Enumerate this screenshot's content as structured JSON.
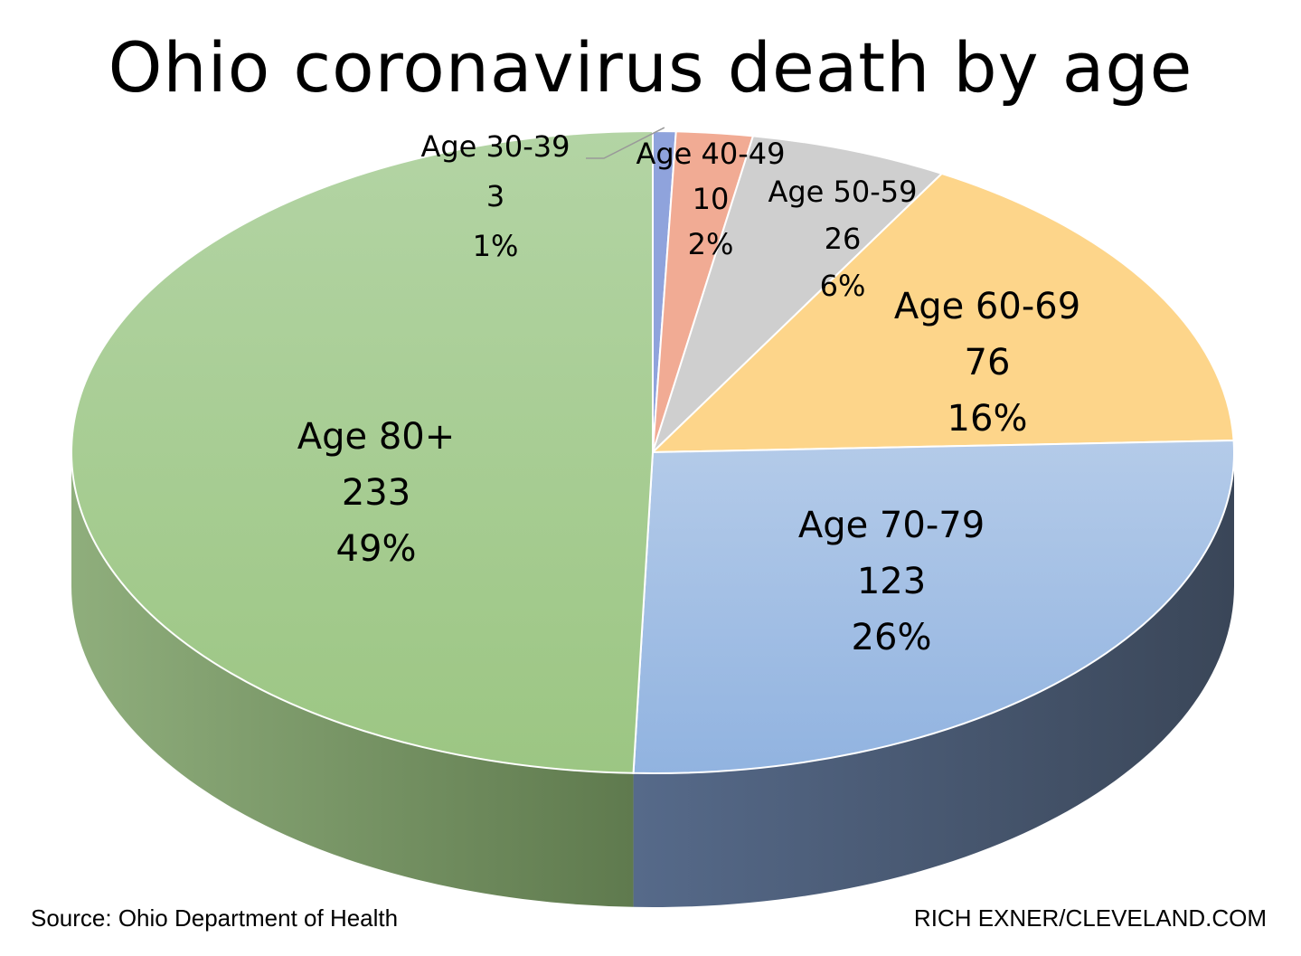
{
  "chart_data": {
    "type": "pie",
    "title": "Ohio coronavirus death by age",
    "slices": [
      {
        "label": "Age 30-39",
        "value": 3,
        "percent": "1%",
        "color": "#8fa3dc",
        "side_color": "#5b6fa8"
      },
      {
        "label": "Age 40-49",
        "value": 10,
        "percent": "2%",
        "color": "#f1ab94",
        "side_color": "#b5705a"
      },
      {
        "label": "Age 50-59",
        "value": 26,
        "percent": "6%",
        "color": "#cfcfcf",
        "side_color": "#8a8a8a"
      },
      {
        "label": "Age 60-69",
        "value": 76,
        "percent": "16%",
        "color": "#fdd58a",
        "side_color": "#b8903f"
      },
      {
        "label": "Age 70-79",
        "value": 123,
        "percent": "26%",
        "color": "#a9c4e6",
        "side_color": "#4a5a75"
      },
      {
        "label": "Age 80+",
        "value": 233,
        "percent": "49%",
        "color": "#a8cf94",
        "side_color": "#6f8f5e"
      }
    ]
  },
  "footer": {
    "source": "Source: Ohio Department of Health",
    "credit": "RICH EXNER/CLEVELAND.COM"
  }
}
